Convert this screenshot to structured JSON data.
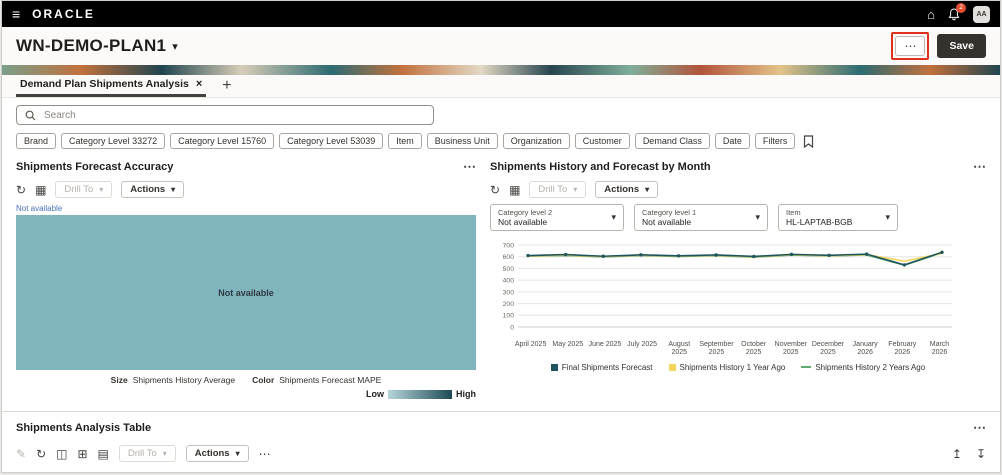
{
  "topbar": {
    "brand": "ORACLE",
    "notification_count": "2",
    "avatar_initials": "AA"
  },
  "header": {
    "title": "WN-DEMO-PLAN1",
    "save_label": "Save"
  },
  "tabs": {
    "active_label": "Demand Plan Shipments Analysis"
  },
  "search": {
    "placeholder": "Search"
  },
  "chips": [
    "Brand",
    "Category Level 33272",
    "Category Level 15760",
    "Category Level 53039",
    "Item",
    "Business Unit",
    "Organization",
    "Customer",
    "Demand Class",
    "Date",
    "Filters"
  ],
  "icons": {
    "hamburger": "≡",
    "home": "⌂",
    "chevron_down": "▾",
    "overflow": "⋯",
    "close": "×",
    "add": "+",
    "refresh": "↻",
    "chart_options": "▦",
    "pencil": "✎",
    "copy": "◫",
    "grid": "⊞",
    "calendar": "▤",
    "export": "↥",
    "download": "↧"
  },
  "accuracy_panel": {
    "title": "Shipments Forecast Accuracy",
    "drill_to_label": "Drill To",
    "actions_label": "Actions",
    "note": "Not available",
    "treemap_text": "Not available",
    "treemap_color": "#81b5be",
    "size_label": "Size",
    "size_value": "Shipments History Average",
    "color_label": "Color",
    "color_value": "Shipments Forecast MAPE",
    "legend_low": "Low",
    "legend_high": "High"
  },
  "history_panel": {
    "title": "Shipments History and Forecast by Month",
    "drill_to_label": "Drill To",
    "actions_label": "Actions",
    "filters": [
      {
        "label": "Category level 2",
        "value": "Not available"
      },
      {
        "label": "Category level 1",
        "value": "Not available"
      },
      {
        "label": "Item",
        "value": "HL-LAPTAB-BGB"
      }
    ]
  },
  "table_panel": {
    "title": "Shipments Analysis Table",
    "drill_to_label": "Drill To",
    "actions_label": "Actions"
  },
  "chart_data": {
    "type": "line",
    "title": "Shipments History and Forecast by Month",
    "x": [
      "April 2025",
      "May 2025",
      "June 2025",
      "July 2025",
      "August 2025",
      "September 2025",
      "October 2025",
      "November 2025",
      "December 2025",
      "January 2026",
      "February 2026",
      "March 2026"
    ],
    "ylim": [
      0,
      700
    ],
    "yticks": [
      0,
      100,
      200,
      300,
      400,
      500,
      600,
      700
    ],
    "grid": true,
    "legend_position": "bottom",
    "series": [
      {
        "name": "Final Shipments Forecast",
        "color": "#1f565e",
        "marker": "square",
        "values": [
          610,
          618,
          604,
          616,
          608,
          615,
          602,
          620,
          612,
          622,
          530,
          638
        ]
      },
      {
        "name": "Shipments History 1 Year Ago",
        "color": "#f2d55c",
        "marker": "square",
        "values": [
          607,
          614,
          601,
          613,
          605,
          612,
          599,
          617,
          609,
          618,
          562,
          628
        ]
      },
      {
        "name": "Shipments History 2 Years Ago",
        "color": "#5faa6f",
        "marker": "line",
        "values": [
          604,
          611,
          598,
          610,
          602,
          609,
          596,
          614,
          606,
          615,
          527,
          634
        ]
      }
    ]
  }
}
